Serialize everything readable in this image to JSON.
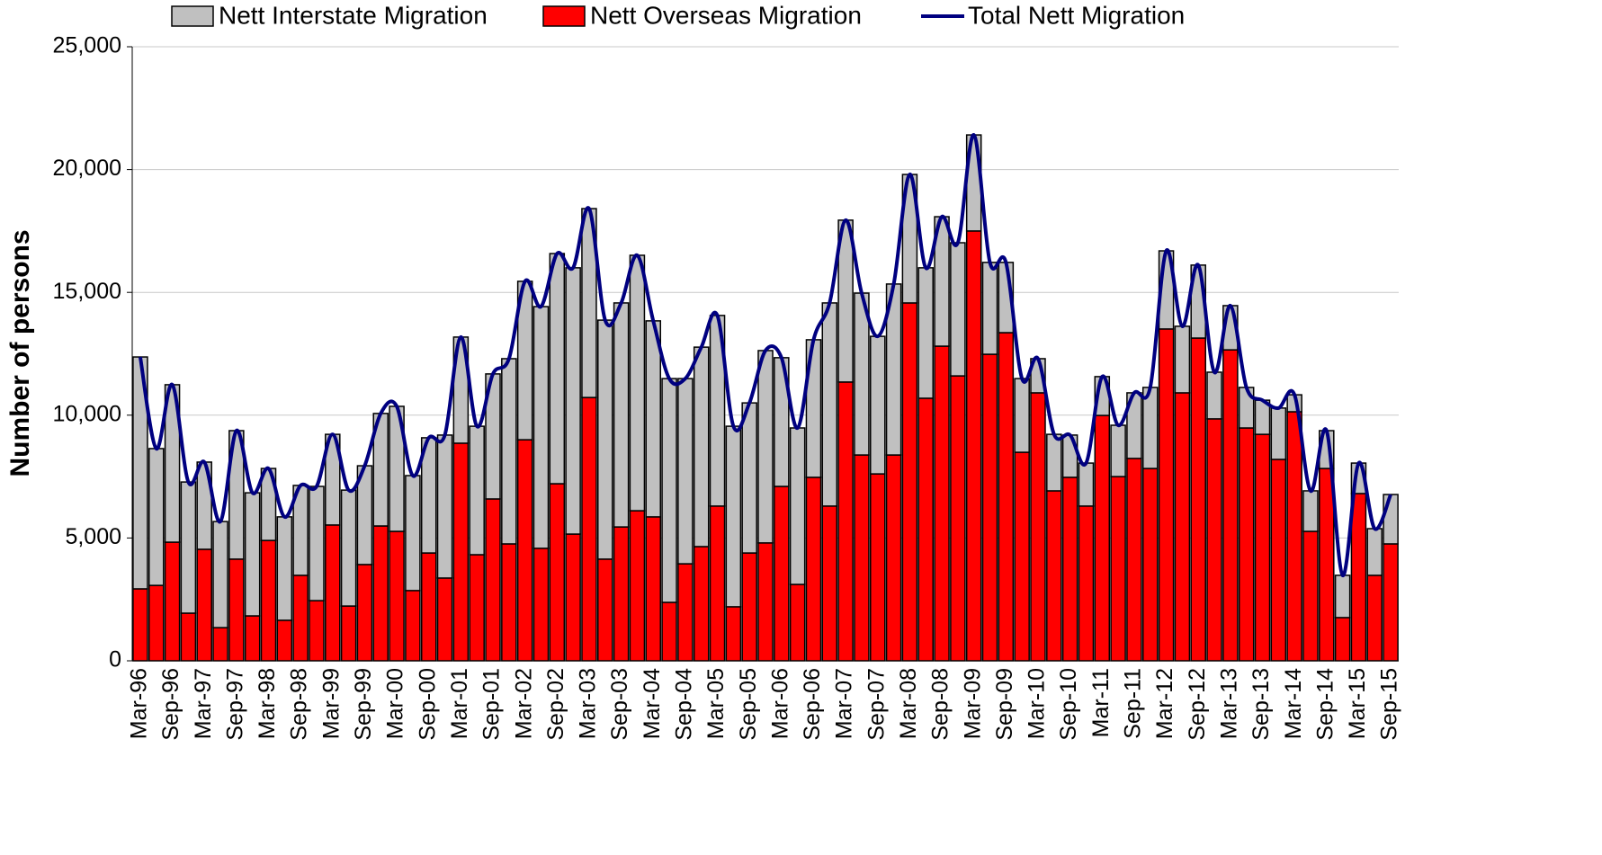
{
  "chart_data": {
    "type": "bar",
    "stacked": true,
    "grid": true,
    "legend": "top",
    "ylabel": "Number of persons",
    "ylim": [
      0,
      25000
    ],
    "yticks": [
      0,
      {
        "value": 5000,
        "label": "5,000"
      },
      {
        "value": 10000,
        "label": "10,000"
      },
      {
        "value": 15000,
        "label": "15,000"
      },
      {
        "value": 20000,
        "label": "20,000"
      },
      {
        "value": 25000,
        "label": "25,000"
      }
    ],
    "categories": [
      "Mar-96",
      null,
      "Sep-96",
      null,
      "Mar-97",
      null,
      "Sep-97",
      null,
      "Mar-98",
      null,
      "Sep-98",
      null,
      "Mar-99",
      null,
      "Sep-99",
      null,
      "Mar-00",
      null,
      "Sep-00",
      null,
      "Mar-01",
      null,
      "Sep-01",
      null,
      "Mar-02",
      null,
      "Sep-02",
      null,
      "Mar-03",
      null,
      "Sep-03",
      null,
      "Mar-04",
      null,
      "Sep-04",
      null,
      "Mar-05",
      null,
      "Sep-05",
      null,
      "Mar-06",
      null,
      "Sep-06",
      null,
      "Mar-07",
      null,
      "Sep-07",
      null,
      "Mar-08",
      null,
      "Sep-08",
      null,
      "Mar-09",
      null,
      "Sep-09",
      null,
      "Mar-10",
      null,
      "Sep-10",
      null,
      "Mar-11",
      null,
      "Sep-11",
      null,
      "Mar-12",
      null,
      "Sep-12",
      null,
      "Mar-13",
      null,
      "Sep-13",
      null,
      "Mar-14",
      null,
      "Sep-14",
      null,
      "Mar-15",
      null,
      "Sep-15"
    ],
    "series": [
      {
        "name": "Nett Interstate Migration",
        "color": "#c0c0c0",
        "values": [
          9440,
          5570,
          6410,
          5340,
          3550,
          4320,
          5230,
          5010,
          2930,
          4210,
          3660,
          4650,
          3690,
          4720,
          4020,
          4580,
          5090,
          4680,
          4690,
          5820,
          4320,
          5230,
          5090,
          7540,
          6450,
          9840,
          9370,
          10840,
          7690,
          9730,
          9120,
          10400,
          7980,
          9110,
          7540,
          8120,
          7760,
          7350,
          6110,
          7830,
          5240,
          6370,
          5600,
          8270,
          6590,
          6590,
          5600,
          6960,
          5230,
          5310,
          5270,
          5420,
          3910,
          3740,
          2860,
          3000,
          1390,
          2300,
          1720,
          1750,
          1580,
          2090,
          2670,
          3300,
          3180,
          2710,
          2970,
          1900,
          1800,
          1650,
          1390,
          2090,
          690,
          1650,
          1540,
          1720,
          1240,
          1900,
          2010
        ]
      },
      {
        "name": "Nett Overseas Migration",
        "color": "#ff0000",
        "values": [
          2930,
          3070,
          4830,
          1940,
          4540,
          1350,
          4140,
          1830,
          4900,
          1650,
          3480,
          2450,
          5530,
          2230,
          3920,
          5490,
          5270,
          2860,
          4390,
          3370,
          8860,
          4320,
          6590,
          4760,
          9000,
          4580,
          7210,
          5160,
          10720,
          4140,
          5450,
          6110,
          5860,
          2380,
          3950,
          4650,
          6300,
          2200,
          4390,
          4800,
          7100,
          3110,
          7470,
          6300,
          11350,
          8380,
          7610,
          8380,
          14570,
          10690,
          12810,
          11600,
          17500,
          12480,
          13360,
          8490,
          10910,
          6920,
          7470,
          6300,
          9990,
          7500,
          8240,
          7830,
          13510,
          10910,
          13140,
          9850,
          12660,
          9480,
          9220,
          8200,
          10140,
          5270,
          7830,
          1760,
          6810,
          3480,
          4760
        ]
      },
      {
        "name": "Total Nett Migration",
        "color": "#000080",
        "type": "line",
        "values": [
          12370,
          8640,
          11240,
          7280,
          8090,
          5670,
          9370,
          6840,
          7830,
          5860,
          7140,
          7100,
          9220,
          6950,
          7940,
          10070,
          10360,
          7540,
          9080,
          9190,
          13180,
          9550,
          11680,
          12300,
          15450,
          14420,
          16580,
          16000,
          18410,
          13870,
          14570,
          16510,
          13840,
          11490,
          11490,
          12770,
          14060,
          9550,
          10500,
          12630,
          12340,
          9480,
          13070,
          14570,
          17940,
          14970,
          13210,
          15340,
          19800,
          16000,
          18080,
          17020,
          21410,
          16220,
          16220,
          11490,
          12300,
          9220,
          9190,
          8050,
          11570,
          9590,
          10910,
          11130,
          16690,
          13620,
          16110,
          11750,
          14460,
          11130,
          10610,
          10290,
          10830,
          6920,
          9370,
          3480,
          8050,
          5380,
          6770
        ]
      }
    ]
  }
}
